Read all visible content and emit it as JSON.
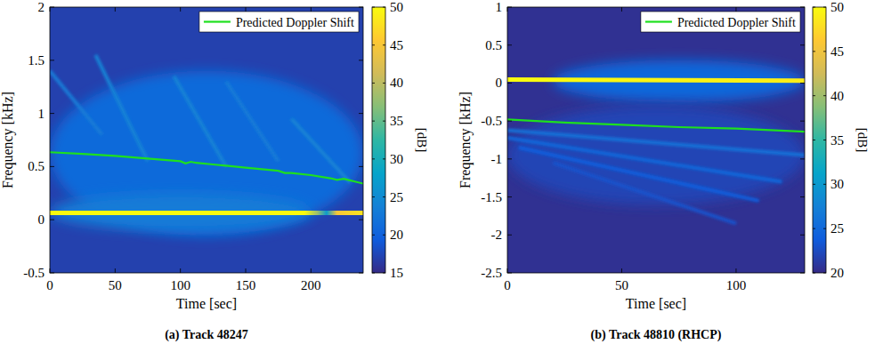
{
  "chart_data": [
    {
      "type": "spectrogram",
      "title": "(a) Track 48247",
      "x_label": "Time [sec]",
      "y_label": "Frequency [kHz]",
      "xlim": [
        0,
        240
      ],
      "xticks": [
        0,
        50,
        100,
        150,
        200
      ],
      "ylim": [
        -0.5,
        2
      ],
      "yticks": [
        -0.5,
        0,
        0.5,
        1,
        1.5,
        2
      ],
      "legend": "upper right",
      "background_db": 17,
      "colorbar": {
        "label": "[dB]",
        "lim": [
          15,
          50
        ],
        "ticks": [
          15,
          20,
          25,
          30,
          35,
          40,
          45,
          50
        ]
      },
      "regions": [
        {
          "x": [
            0,
            240
          ],
          "y": [
            -0.15,
            1.4
          ],
          "db": 21
        },
        {
          "x": [
            0,
            200
          ],
          "y": [
            -0.1,
            0.25
          ],
          "db": 23
        }
      ],
      "streaks": [
        {
          "x": [
            0,
            40
          ],
          "values": [
            1.4,
            0.8
          ],
          "db": 23
        },
        {
          "x": [
            35,
            75
          ],
          "values": [
            1.55,
            0.55
          ],
          "db": 24
        },
        {
          "x": [
            95,
            135
          ],
          "values": [
            1.35,
            0.5
          ],
          "db": 24
        },
        {
          "x": [
            135,
            175
          ],
          "values": [
            1.3,
            0.55
          ],
          "db": 23
        },
        {
          "x": [
            185,
            230
          ],
          "values": [
            0.95,
            0.35
          ],
          "db": 24
        }
      ],
      "series": [
        {
          "name": "Predicted Doppler Shift",
          "color": "#1ee01e",
          "x": [
            0,
            25,
            50,
            75,
            100,
            104,
            108,
            112,
            125,
            150,
            175,
            180,
            185,
            200,
            215,
            220,
            225,
            240
          ],
          "values": [
            0.635,
            0.62,
            0.6,
            0.575,
            0.55,
            0.53,
            0.545,
            0.535,
            0.52,
            0.49,
            0.46,
            0.44,
            0.44,
            0.42,
            0.39,
            0.375,
            0.385,
            0.34
          ]
        },
        {
          "x": [
            0,
            195,
            205,
            212,
            220,
            240
          ],
          "values": [
            0.065,
            0.065,
            0.065,
            0.065,
            0.065,
            0.065
          ],
          "levels": [
            50,
            50,
            38,
            27,
            45,
            48
          ]
        }
      ]
    },
    {
      "type": "spectrogram",
      "title": "(b) Track 48810 (RHCP)",
      "x_label": "Time [sec]",
      "y_label": "Frequency [kHz]",
      "xlim": [
        0,
        130
      ],
      "xticks": [
        0,
        50,
        100
      ],
      "ylim": [
        -2.5,
        1
      ],
      "yticks": [
        -2.5,
        -2,
        -1.5,
        -1,
        -0.5,
        0,
        0.5,
        1
      ],
      "legend": "upper right",
      "background_db": 20.5,
      "colorbar": {
        "label": "[dB]",
        "lim": [
          20,
          50
        ],
        "ticks": [
          20,
          25,
          30,
          35,
          40,
          45,
          50
        ]
      },
      "regions": [
        {
          "x": [
            20,
            130
          ],
          "y": [
            -0.25,
            0.3
          ],
          "db": 25
        },
        {
          "x": [
            0,
            130
          ],
          "y": [
            -1.6,
            -0.3
          ],
          "db": 22
        }
      ],
      "streaks": [
        {
          "x": [
            0,
            130
          ],
          "values": [
            -0.62,
            -0.95
          ],
          "db": 26
        },
        {
          "x": [
            0,
            120
          ],
          "values": [
            -0.72,
            -1.3
          ],
          "db": 25
        },
        {
          "x": [
            5,
            110
          ],
          "values": [
            -0.85,
            -1.55
          ],
          "db": 24
        },
        {
          "x": [
            20,
            100
          ],
          "values": [
            -1.05,
            -1.85
          ],
          "db": 23
        }
      ],
      "series": [
        {
          "name": "Predicted Doppler Shift",
          "color": "#1ee01e",
          "x": [
            0,
            25,
            50,
            75,
            100,
            130
          ],
          "values": [
            -0.48,
            -0.52,
            -0.55,
            -0.58,
            -0.6,
            -0.64
          ]
        },
        {
          "x": [
            0,
            130
          ],
          "values": [
            0.045,
            0.03
          ],
          "levels": [
            50,
            49
          ]
        }
      ]
    }
  ]
}
